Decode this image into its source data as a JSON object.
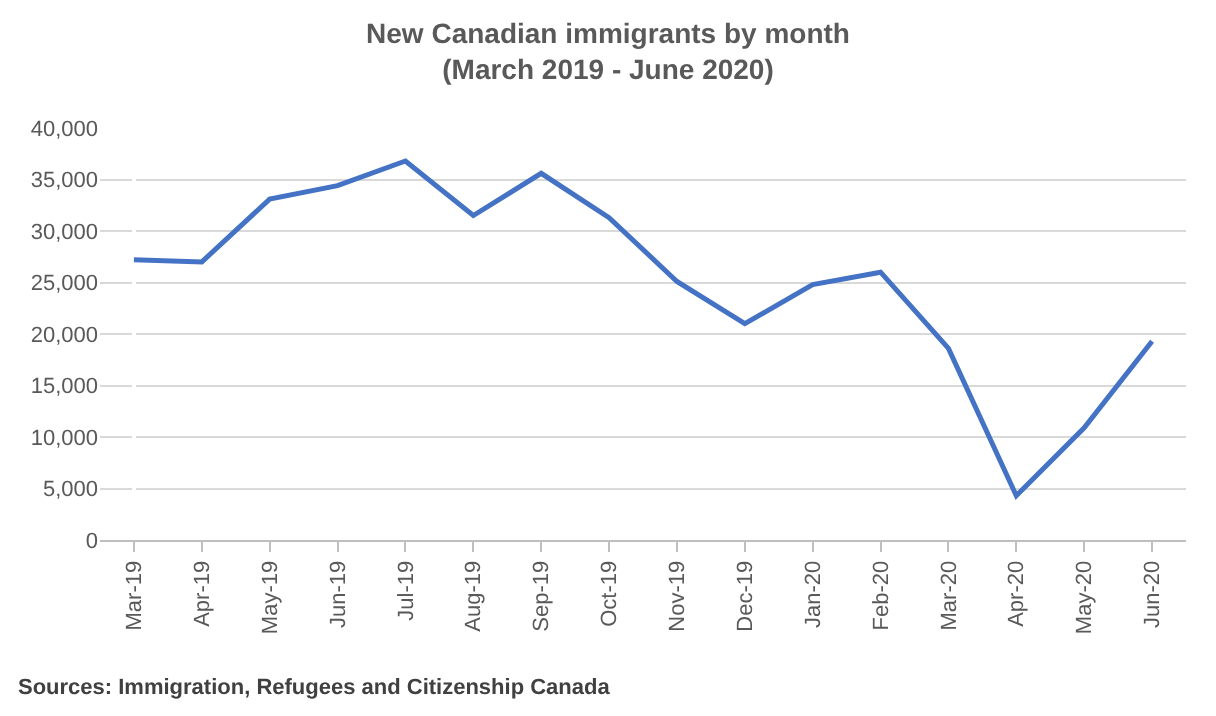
{
  "chart_data": {
    "type": "line",
    "title": "New Canadian immigrants by month\n(March 2019 - June 2020)",
    "categories": [
      "Mar-19",
      "Apr-19",
      "May-19",
      "Jun-19",
      "Jul-19",
      "Aug-19",
      "Sep-19",
      "Oct-19",
      "Nov-19",
      "Dec-19",
      "Jan-20",
      "Feb-20",
      "Mar-20",
      "Apr-20",
      "May-20",
      "Jun-20"
    ],
    "series": [
      {
        "color": "#4472c4",
        "values": [
          27200,
          27000,
          33100,
          34400,
          36800,
          31500,
          35600,
          31300,
          25100,
          21000,
          24800,
          26000,
          18600,
          4300,
          10900,
          19300
        ]
      }
    ],
    "ylim": [
      0,
      40000
    ],
    "yticks": [
      {
        "value": 0,
        "label": "0"
      },
      {
        "value": 5000,
        "label": "5,000"
      },
      {
        "value": 10000,
        "label": "10,000"
      },
      {
        "value": 15000,
        "label": "15,000"
      },
      {
        "value": 20000,
        "label": "20,000"
      },
      {
        "value": 25000,
        "label": "25,000"
      },
      {
        "value": 30000,
        "label": "30,000"
      },
      {
        "value": 35000,
        "label": "35,000"
      },
      {
        "value": 40000,
        "label": "40,000"
      }
    ],
    "grid": "y",
    "legend": false,
    "marker": "none",
    "line_style": "solid",
    "annotations": [
      "Sources: Immigration, Refugees and Citizenship Canada"
    ]
  }
}
